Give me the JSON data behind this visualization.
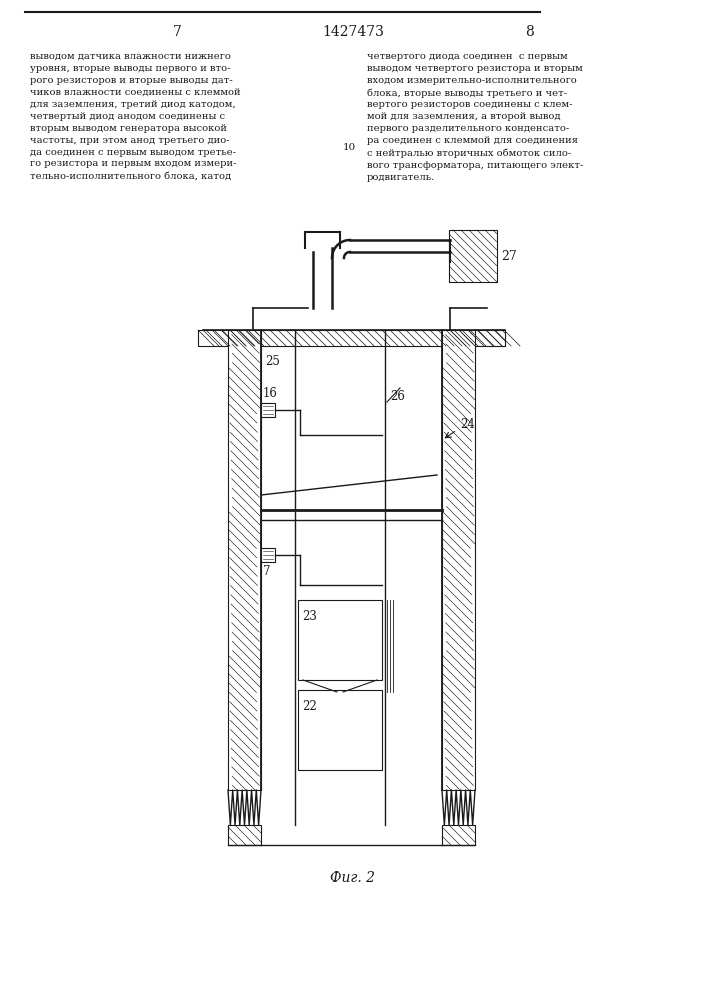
{
  "page_number_left": "7",
  "page_number_center": "1427473",
  "page_number_right": "8",
  "text_left": "выводом датчика влажности нижнего\nуровня, вторые выводы первого и вто-\nрого резисторов и вторые выводы дат-\nчиков влажности соединены с клеммой\nдля заземления, третий диод катодом,\nчетвертый диод анодом соединены с\nвторым выводом генератора высокой\nчастоты, при этом анод третьего дио-\nда соединен с первым выводом третье-\nго резистора и первым входом измери-\nтельно-исполнительного блока, катод",
  "text_right": "четвертого диода соединен  с первым\nвыводом четвертого резистора и вторым\nвходом измерительно-исполнительного\nблока, вторые выводы третьего и чет-\nвертого резисторов соединены с клем-\nмой для заземления, а второй вывод\nпервого разделительного конденсато-\nра соединен с клеммой для соединения\nс нейтралью вторичных обмоток сило-\nвого трансформатора, питающего элект-\nродвигатель.",
  "line_number": "10",
  "fig_label": "Фиг. 2",
  "bg_color": "#ffffff",
  "line_color": "#1a1a1a"
}
